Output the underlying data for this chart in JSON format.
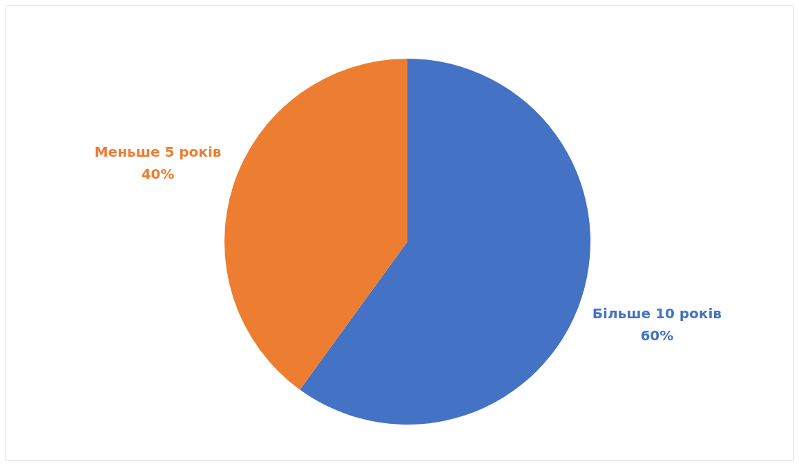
{
  "chart_data": {
    "type": "pie",
    "categories": [
      "Більше 10 років",
      "Меньше 5 років"
    ],
    "values": [
      60,
      40
    ],
    "colors": [
      "#4472c4",
      "#ed7d31"
    ],
    "value_labels": [
      "60%",
      "40%"
    ],
    "legend": false
  }
}
